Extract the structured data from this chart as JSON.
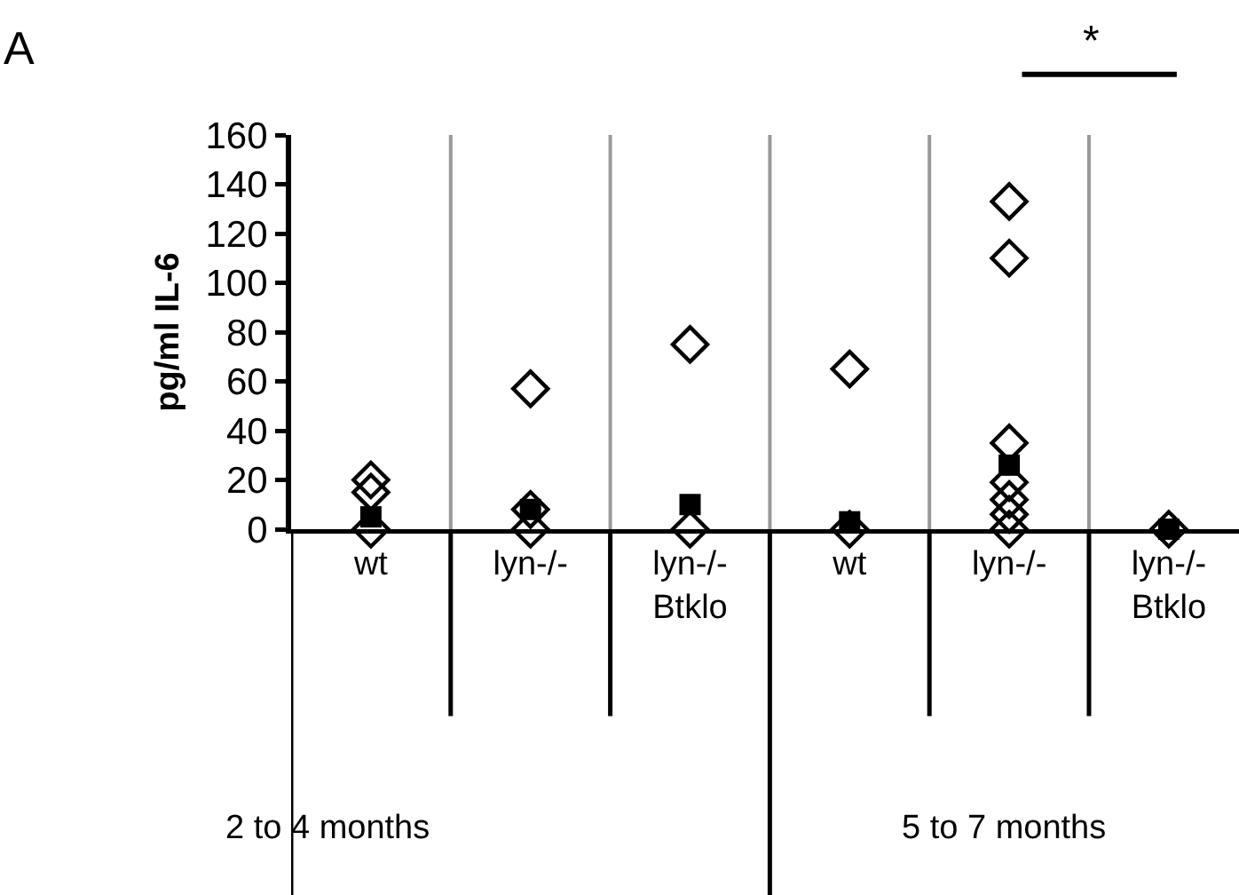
{
  "chart_data": {
    "type": "scatter",
    "ylabel": "pg/ml IL-6",
    "categories": [
      "wt",
      "lyn-/-",
      "lyn-/-\nBtklo",
      "wt",
      "lyn-/-",
      "lyn-/-\nBtklo"
    ],
    "series": [
      {
        "color": "#000000",
        "marker": "diamond",
        "values": [
          20,
          57,
          75,
          65,
          133,
          0
        ]
      },
      {
        "color": "#000000",
        "marker": "diamond",
        "values": [
          15,
          8,
          0,
          0,
          110,
          null
        ]
      },
      {
        "color": "#000000",
        "marker": "diamond",
        "values": [
          0,
          0,
          null,
          null,
          35,
          null
        ]
      },
      {
        "color": "#000000",
        "marker": "diamond",
        "values": [
          null,
          null,
          null,
          null,
          19,
          null
        ]
      },
      {
        "color": "#000000",
        "marker": "diamond",
        "values": [
          null,
          null,
          null,
          null,
          12,
          null
        ]
      },
      {
        "color": "#000000",
        "marker": "diamond",
        "values": [
          null,
          null,
          null,
          null,
          6,
          null
        ]
      },
      {
        "color": "#000000",
        "marker": "diamond",
        "values": [
          null,
          null,
          null,
          null,
          0,
          null
        ]
      },
      {
        "color": "#000000",
        "marker": "square",
        "values": [
          5,
          8,
          10,
          3,
          26,
          0
        ]
      }
    ],
    "ylim": [
      0,
      160
    ],
    "yticks": [
      0,
      20,
      40,
      60,
      80,
      100,
      120,
      140,
      160
    ],
    "grid": "x",
    "annotations": [
      "A",
      "*",
      "2 to 4 months",
      "5 to 7 months"
    ]
  }
}
